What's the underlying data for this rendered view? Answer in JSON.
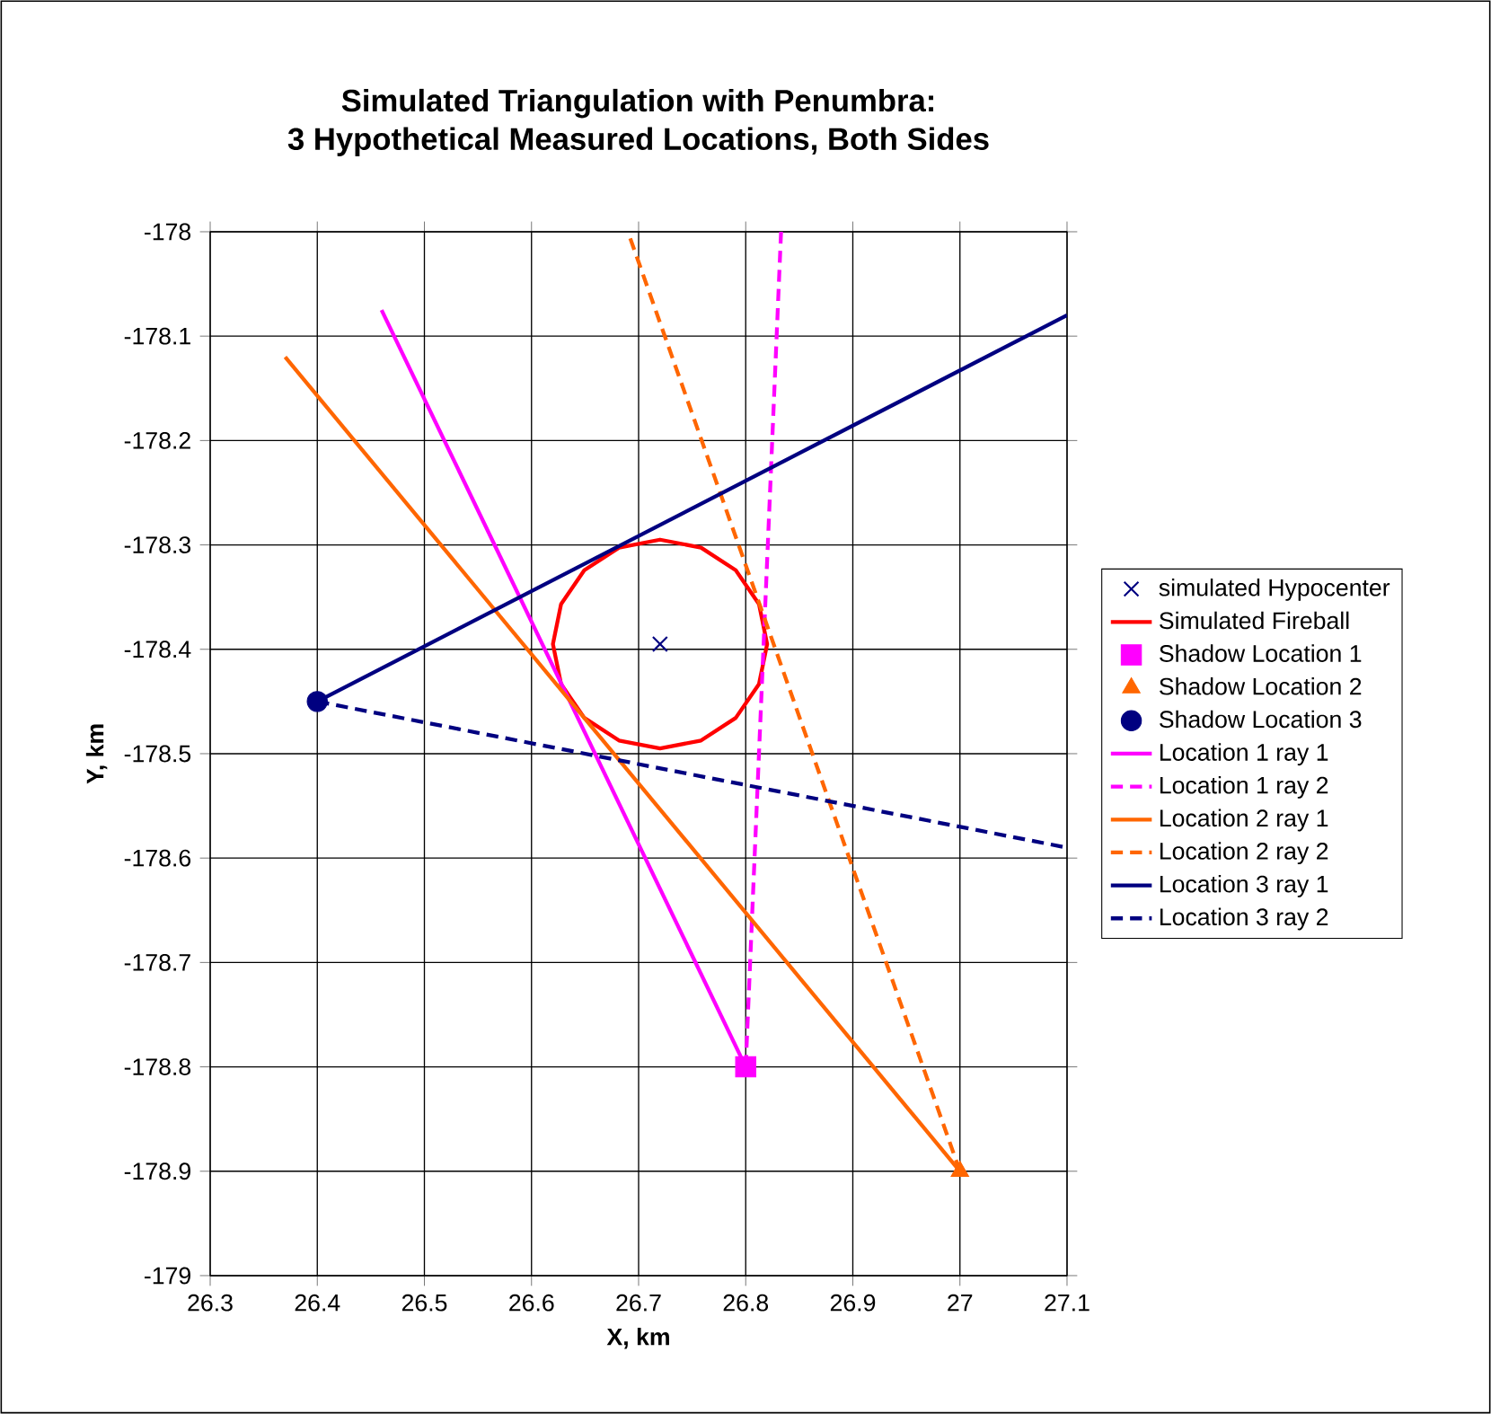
{
  "chart_data": {
    "type": "line",
    "title": "Simulated Triangulation with Penumbra:",
    "subtitle": "3 Hypothetical Measured Locations, Both Sides",
    "xlabel": "X, km",
    "ylabel": "Y, km",
    "xlim": [
      26.3,
      27.1
    ],
    "ylim": [
      -179,
      -178
    ],
    "xticks": [
      26.3,
      26.4,
      26.5,
      26.6,
      26.7,
      26.8,
      26.9,
      27,
      27.1
    ],
    "yticks": [
      -178,
      -178.1,
      -178.2,
      -178.3,
      -178.4,
      -178.5,
      -178.6,
      -178.7,
      -178.8,
      -178.9,
      -179
    ],
    "grid": true,
    "legend": "right",
    "annotations": [
      "Simulated Fireball"
    ],
    "series": [
      {
        "name": "simulated Hypocenter",
        "type": "scatter",
        "marker": "cross",
        "color": "#000080",
        "x": [
          26.72
        ],
        "values": [
          -178.395
        ]
      },
      {
        "name": "Shadow Location 1",
        "type": "scatter",
        "marker": "square",
        "color": "#ff00ff",
        "x": [
          26.8
        ],
        "values": [
          -178.8
        ]
      },
      {
        "name": "Shadow Location 2",
        "type": "scatter",
        "marker": "triangle",
        "color": "#ff6600",
        "x": [
          27
        ],
        "values": [
          -178.9
        ]
      },
      {
        "name": "Shadow Location 3",
        "type": "scatter",
        "marker": "circle",
        "color": "#000080",
        "x": [
          26.4
        ],
        "values": [
          -178.45
        ]
      },
      {
        "name": "Location 1 ray 1",
        "type": "line",
        "marker": "none",
        "line_style": "solid",
        "color": "#ff00ff",
        "x": [
          26.8,
          26.46
        ],
        "values": [
          -178.8,
          -178.075
        ]
      },
      {
        "name": "Location 1 ray 2",
        "marker": "none",
        "line_style": "dashed",
        "color": "#ff00ff",
        "x": [
          26.8,
          26.833
        ],
        "values": [
          -178.8,
          -178.0
        ]
      },
      {
        "name": "Location 2 ray 1",
        "marker": "none",
        "line_style": "solid",
        "color": "#ff6600",
        "x": [
          27,
          26.37
        ],
        "values": [
          -178.9,
          -178.12
        ]
      },
      {
        "name": "Location 2 ray 2",
        "marker": "none",
        "line_style": "dashed",
        "color": "#ff6600",
        "x": [
          27,
          26.69
        ],
        "values": [
          -178.9,
          -178.0
        ]
      },
      {
        "name": "Location 3 ray 1",
        "marker": "none",
        "line_style": "solid",
        "color": "#000080",
        "x": [
          26.4,
          27.1
        ],
        "values": [
          -178.45,
          -178.08
        ]
      },
      {
        "name": "Location 3 ray 2",
        "marker": "none",
        "line_style": "dashed",
        "color": "#000080",
        "x": [
          26.4,
          27.1
        ],
        "values": [
          -178.45,
          -178.59
        ]
      }
    ]
  }
}
